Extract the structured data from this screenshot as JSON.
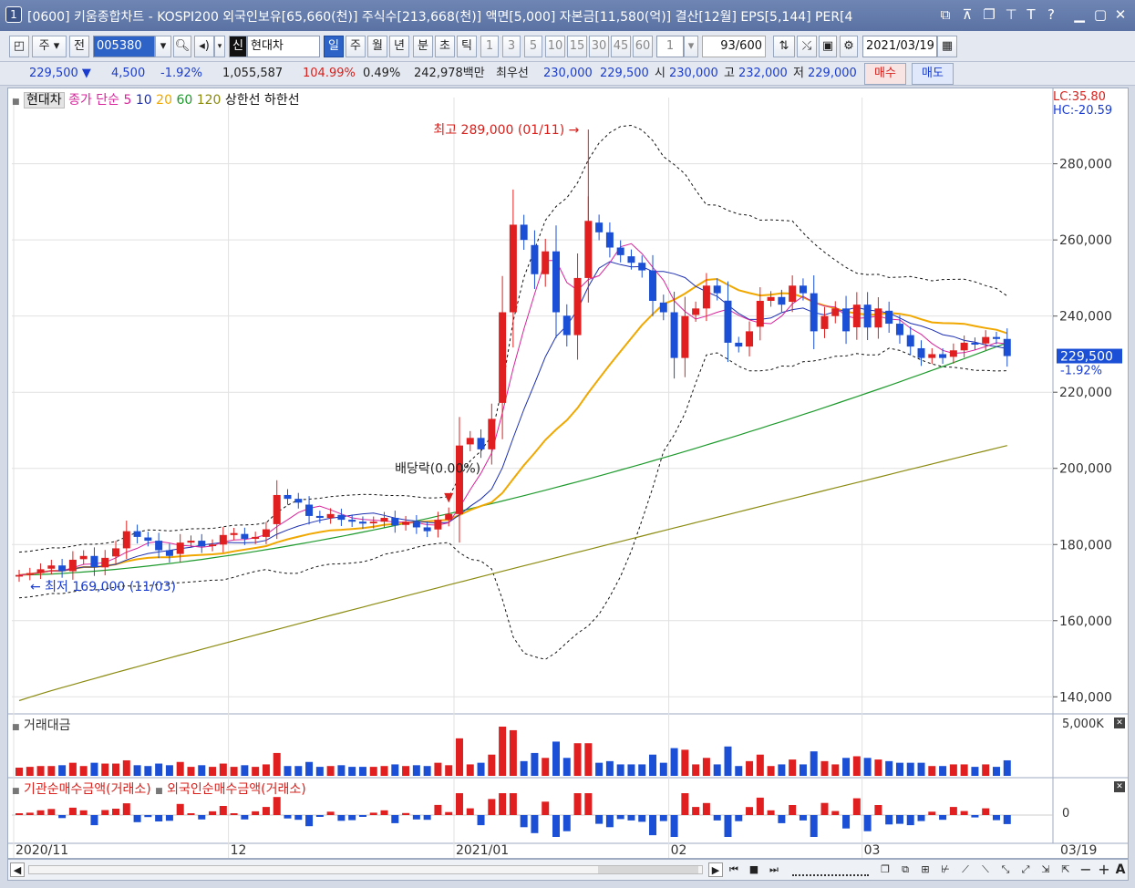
{
  "window": {
    "number": "1",
    "title": "[0600] 키움종합차트 - KOSPI200 외국인보유[65,660(천)] 주식수[213,668(천)] 액면[5,000] 자본금[11,580(억)] 결산[12월] EPS[5,144] PER[4",
    "title_icons": [
      "restore-icon",
      "pin-icon",
      "copy-icon",
      "top-icon",
      "text-icon",
      "help-icon",
      "minimize-icon",
      "maximize-icon",
      "close-icon"
    ]
  },
  "toolbar": {
    "type_select": "주",
    "jeon_label": "전",
    "stock_code": "005380",
    "shin_badge": "신",
    "stock_name": "현대차",
    "periods": [
      "일",
      "주",
      "월",
      "년",
      "분",
      "초",
      "틱"
    ],
    "selected_period": "일",
    "intervals": [
      "1",
      "3",
      "5",
      "10",
      "15",
      "30",
      "45",
      "60"
    ],
    "interval_value": "1",
    "count": "93",
    "count_total": "/600",
    "date": "2021/03/19"
  },
  "quote": {
    "price": "229,500",
    "change": "4,500",
    "change_pct": "-1.92%",
    "volume": "1,055,587",
    "vol_ratio": "104.99%",
    "turnover": "0.49%",
    "amount": "242,978백만",
    "best_label": "최우선",
    "best_ask": "230,000",
    "best_bid": "229,500",
    "open_label": "시",
    "open": "230,000",
    "high_label": "고",
    "high": "232,000",
    "low_label": "저",
    "low": "229,000",
    "buy_button": "매수",
    "sell_button": "매도"
  },
  "chart_data": {
    "type": "candlestick",
    "legend": {
      "name": "현대차",
      "close_label": "종가 단순",
      "ma_periods": [
        "5",
        "10",
        "20",
        "60",
        "120"
      ],
      "ma_colors": [
        "#d8249b",
        "#1c2fb0",
        "#f0a800",
        "#1d9a2c",
        "#8b8b10"
      ],
      "upper_band": "상한선",
      "lower_band": "하한선"
    },
    "lc_label": "LC:35.80",
    "hc_label": "HC:-20.59",
    "y_ticks": [
      "280,000",
      "260,000",
      "240,000",
      "220,000",
      "200,000",
      "180,000",
      "160,000",
      "140,000"
    ],
    "y_tick_values": [
      280000,
      260000,
      240000,
      220000,
      200000,
      180000,
      160000,
      140000
    ],
    "ylim": [
      136000,
      295000
    ],
    "x_labels": [
      "2020/11",
      "12",
      "2021/01",
      "02",
      "03"
    ],
    "x_label_index": [
      0,
      20,
      41,
      61,
      79
    ],
    "right_date_label": "03/19",
    "current_price_label": "229,500",
    "current_change_label": "-1.92%",
    "annotations": {
      "high": "최고 289,000 (01/11)",
      "low": "최저 169,000 (11/03)",
      "dividend": "배당락(0.00%)"
    },
    "up_color": "#e02020",
    "down_color": "#1a4fd6",
    "closes": [
      172000,
      172500,
      173500,
      174500,
      173000,
      176000,
      177000,
      174000,
      176500,
      179000,
      183500,
      182000,
      181000,
      178500,
      177000,
      180500,
      181000,
      179500,
      180000,
      182500,
      183000,
      181500,
      182000,
      184000,
      193000,
      192000,
      191000,
      187500,
      187000,
      188000,
      186500,
      186000,
      185500,
      186000,
      187000,
      185000,
      186000,
      184500,
      183500,
      186500,
      188000,
      206000,
      208000,
      205000,
      213000,
      241000,
      264000,
      260000,
      251000,
      257000,
      241000,
      235000,
      250000,
      265000,
      262000,
      258000,
      256000,
      254000,
      252000,
      244000,
      241000,
      229000,
      240000,
      242000,
      248000,
      246000,
      233000,
      232000,
      236000,
      244000,
      245000,
      243000,
      248000,
      246000,
      236000,
      240000,
      242000,
      236000,
      243000,
      237000,
      242000,
      238000,
      235000,
      232000,
      229000,
      230000,
      229000,
      231000,
      233000,
      232500,
      234500,
      234000,
      229500
    ],
    "ma20_end": 235000,
    "ma60_end": 233000,
    "ma120_end": 206000,
    "upper_band_end": 245000,
    "lower_band_end": 226000
  },
  "trade_panel": {
    "title": "거래대금",
    "scale_label": "5,000K"
  },
  "flow_panel": {
    "title_inst": "기관순매수금액(거래소)",
    "title_foreign": "외국인순매수금액(거래소)",
    "zero_label": "0"
  },
  "bottom": {
    "icons": [
      "scroll-left-icon",
      "scroll-right-icon",
      "rewind-icon",
      "stop-icon",
      "forward-icon",
      "zoom-slider-icon",
      "layout1-icon",
      "layout2-icon",
      "layout3-icon",
      "tool-a-icon",
      "tool-b-icon",
      "tool-c-icon",
      "minus-icon",
      "plus-icon",
      "text-a-icon"
    ]
  }
}
